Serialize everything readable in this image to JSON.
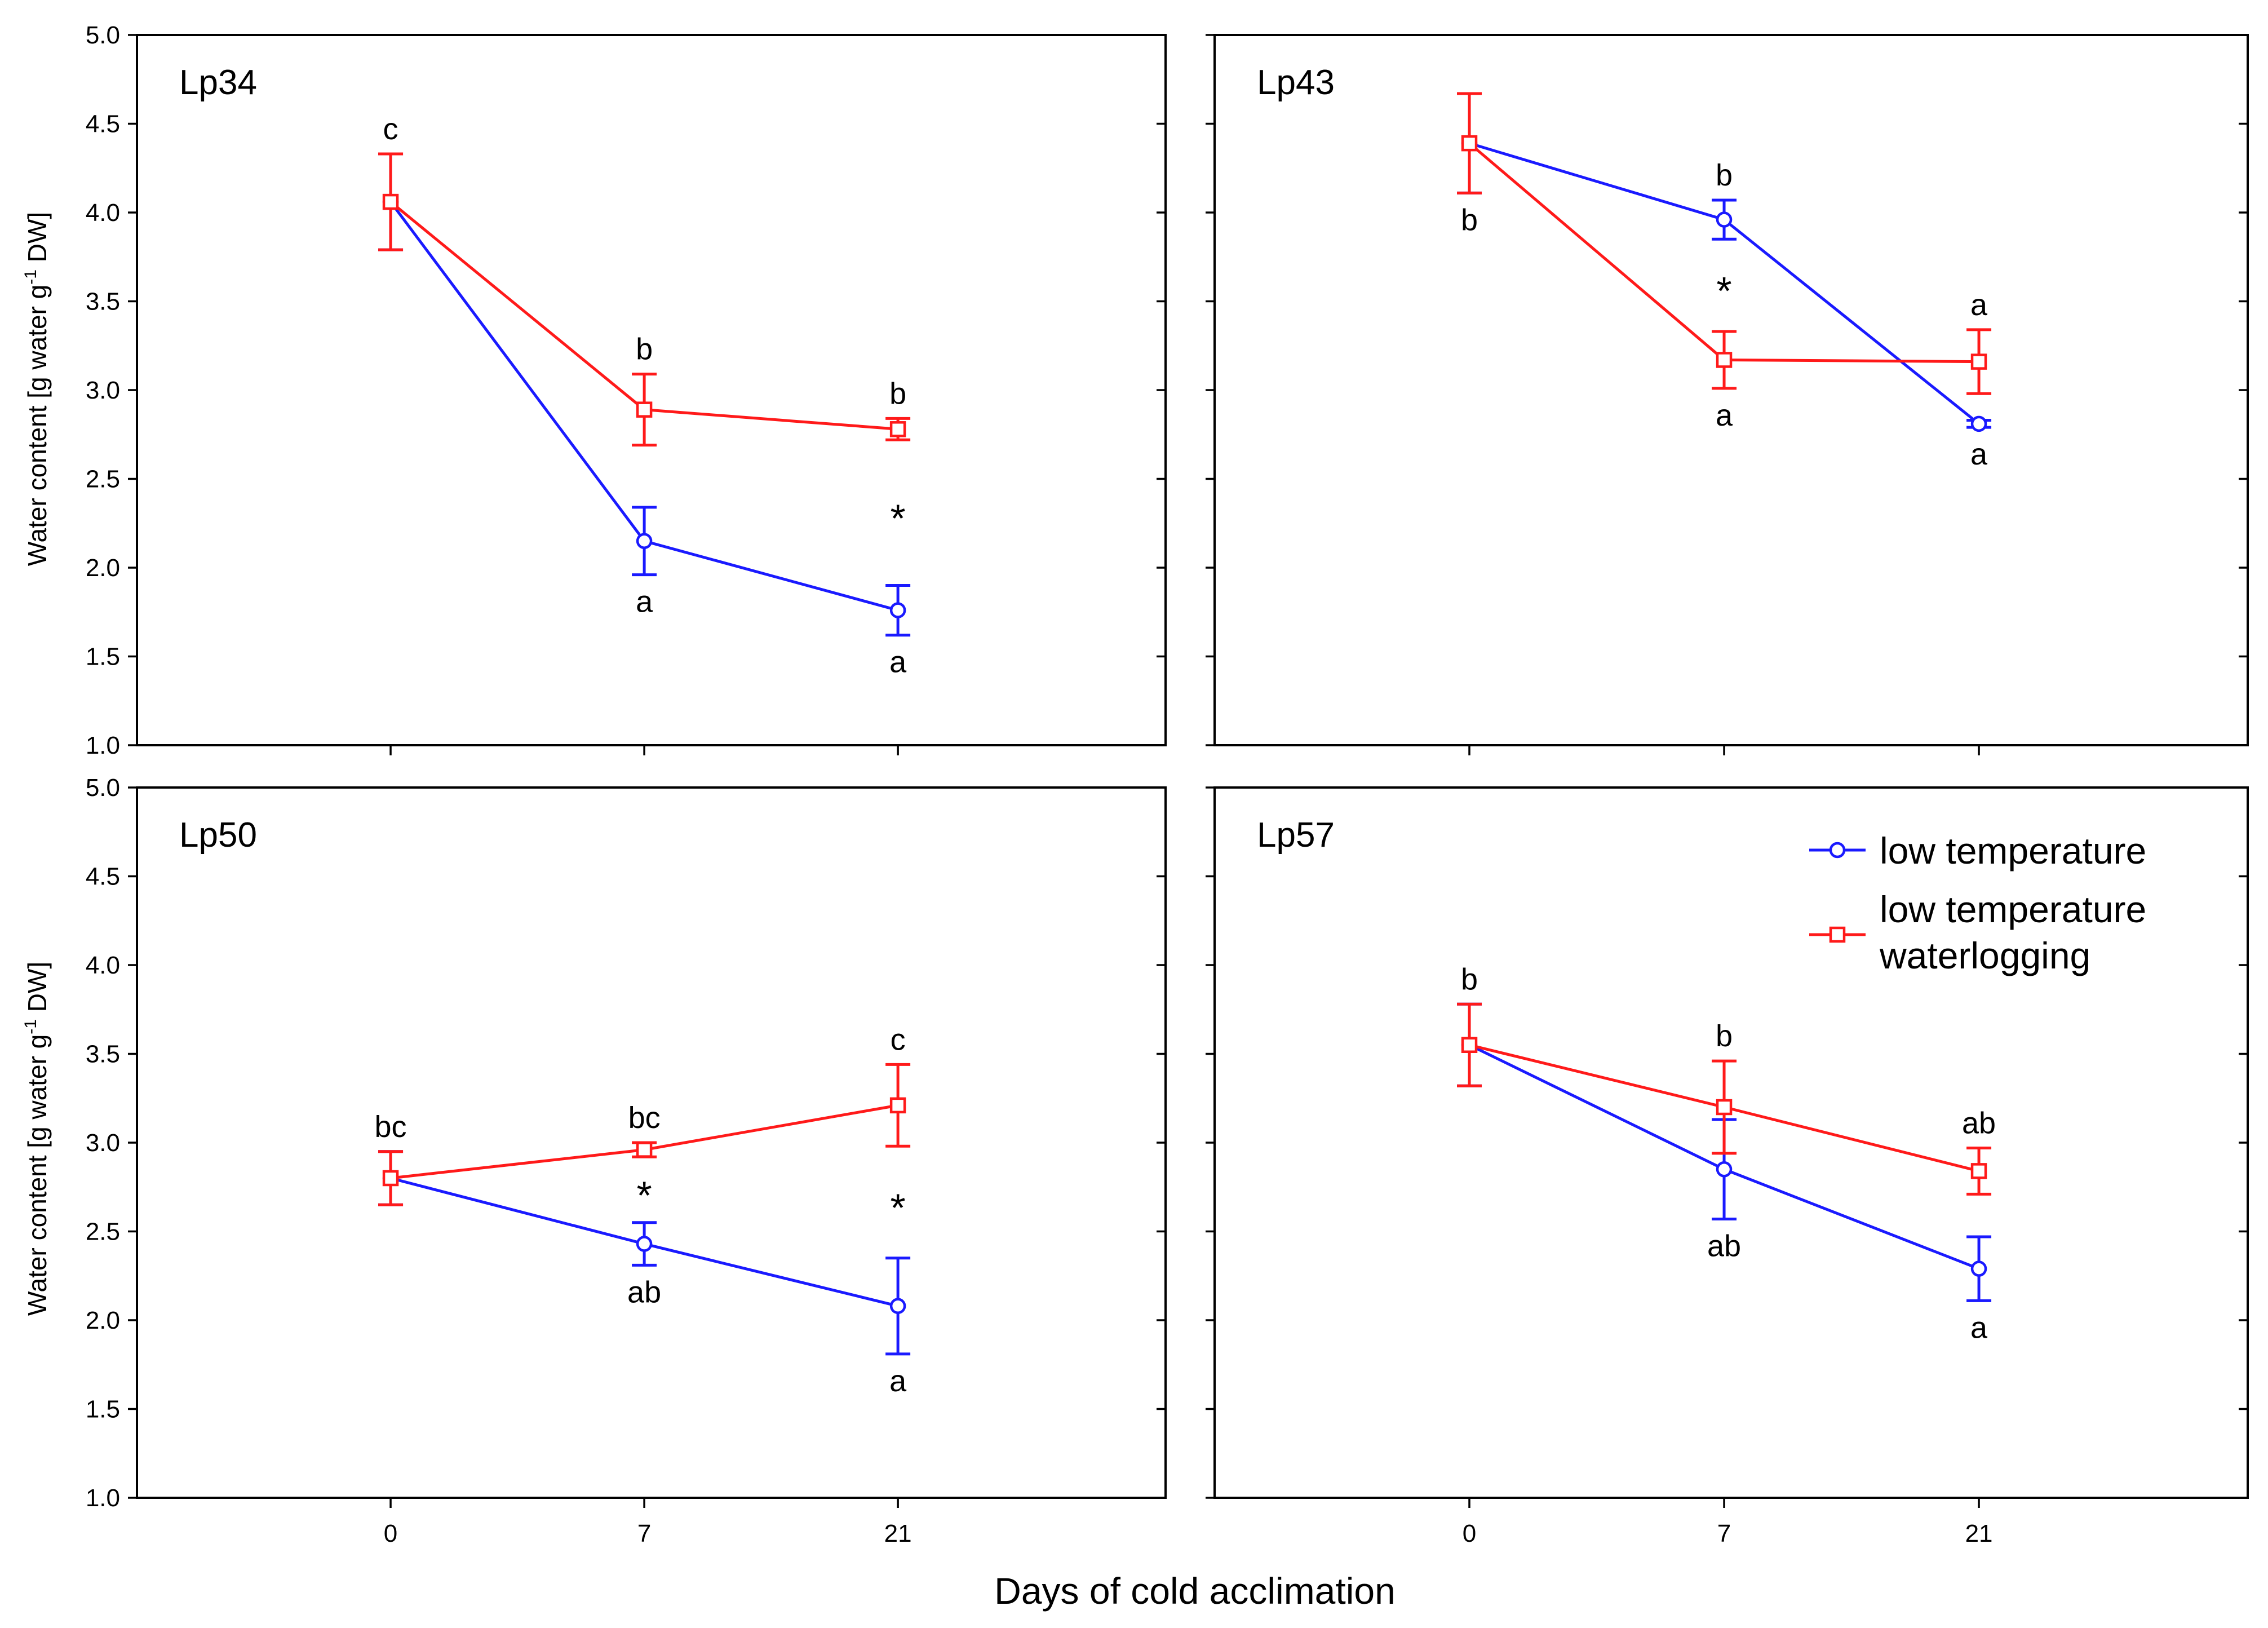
{
  "colors": {
    "low_temperature": "#1a1aff",
    "low_temperature_waterlogging": "#ff1a1a",
    "axes": "#000000"
  },
  "figure": {
    "xlabel": "Days of cold acclimation",
    "ylabel_main": "Water content [g water g",
    "ylabel_sup": "-1",
    "ylabel_tail": " DW]"
  },
  "legend": {
    "items": [
      {
        "key": "lt",
        "lines": [
          "low temperature"
        ],
        "marker": "circle"
      },
      {
        "key": "ltw",
        "lines": [
          "low temperature",
          "waterlogging"
        ],
        "marker": "square"
      }
    ]
  },
  "chart_data": [
    {
      "type": "line",
      "title": "Lp34",
      "categories": [
        "0",
        "7",
        "21"
      ],
      "ylim": [
        1.0,
        5.0
      ],
      "yticks": [
        "1.0",
        "1.5",
        "2.0",
        "2.5",
        "3.0",
        "3.5",
        "4.0",
        "4.5",
        "5.0"
      ],
      "grid": false,
      "series": [
        {
          "name": "low temperature",
          "values": [
            4.06,
            2.15,
            1.76
          ],
          "errors": [
            0.27,
            0.19,
            0.14
          ],
          "labels": [
            "c",
            "a",
            "a"
          ],
          "label_pos": [
            "above",
            "below",
            "below"
          ]
        },
        {
          "name": "low temperature waterlogging",
          "values": [
            4.06,
            2.89,
            2.78
          ],
          "errors": [
            0.27,
            0.2,
            0.06
          ],
          "labels": [
            "",
            "b",
            "b"
          ],
          "label_pos": [
            "above",
            "above",
            "above"
          ]
        }
      ],
      "significance": [
        false,
        false,
        true
      ]
    },
    {
      "type": "line",
      "title": "Lp43",
      "categories": [
        "0",
        "7",
        "21"
      ],
      "ylim": [
        1.0,
        5.0
      ],
      "yticks": [
        "1.0",
        "1.5",
        "2.0",
        "2.5",
        "3.0",
        "3.5",
        "4.0",
        "4.5",
        "5.0"
      ],
      "grid": false,
      "series": [
        {
          "name": "low temperature",
          "values": [
            4.39,
            3.96,
            2.81
          ],
          "errors": [
            0.28,
            0.11,
            0.02
          ],
          "labels": [
            "",
            "b",
            "a"
          ],
          "label_pos": [
            "above",
            "above",
            "below"
          ]
        },
        {
          "name": "low temperature waterlogging",
          "values": [
            4.39,
            3.17,
            3.16
          ],
          "errors": [
            0.28,
            0.16,
            0.18
          ],
          "labels": [
            "b",
            "a",
            "a"
          ],
          "label_pos": [
            "below",
            "below",
            "above"
          ]
        }
      ],
      "significance": [
        false,
        true,
        false
      ]
    },
    {
      "type": "line",
      "title": "Lp50",
      "categories": [
        "0",
        "7",
        "21"
      ],
      "ylim": [
        1.0,
        5.0
      ],
      "yticks": [
        "1.0",
        "1.5",
        "2.0",
        "2.5",
        "3.0",
        "3.5",
        "4.0",
        "4.5",
        "5.0"
      ],
      "grid": false,
      "series": [
        {
          "name": "low temperature",
          "values": [
            2.8,
            2.43,
            2.08
          ],
          "errors": [
            0.15,
            0.12,
            0.27
          ],
          "labels": [
            "bc",
            "ab",
            "a"
          ],
          "label_pos": [
            "above",
            "below",
            "below"
          ]
        },
        {
          "name": "low temperature waterlogging",
          "values": [
            2.8,
            2.96,
            3.21
          ],
          "errors": [
            0.15,
            0.04,
            0.23
          ],
          "labels": [
            "",
            "bc",
            "c"
          ],
          "label_pos": [
            "above",
            "above",
            "above"
          ]
        }
      ],
      "significance": [
        false,
        true,
        true
      ]
    },
    {
      "type": "line",
      "title": "Lp57",
      "categories": [
        "0",
        "7",
        "21"
      ],
      "ylim": [
        1.0,
        5.0
      ],
      "yticks": [
        "1.0",
        "1.5",
        "2.0",
        "2.5",
        "3.0",
        "3.5",
        "4.0",
        "4.5",
        "5.0"
      ],
      "grid": false,
      "series": [
        {
          "name": "low temperature",
          "values": [
            3.55,
            2.85,
            2.29
          ],
          "errors": [
            0.23,
            0.28,
            0.18
          ],
          "labels": [
            "b",
            "ab",
            "a"
          ],
          "label_pos": [
            "above",
            "below",
            "below"
          ]
        },
        {
          "name": "low temperature waterlogging",
          "values": [
            3.55,
            3.2,
            2.84
          ],
          "errors": [
            0.23,
            0.26,
            0.13
          ],
          "labels": [
            "",
            "b",
            "ab"
          ],
          "label_pos": [
            "above",
            "above",
            "above"
          ]
        }
      ],
      "significance": [
        false,
        false,
        false
      ]
    }
  ]
}
